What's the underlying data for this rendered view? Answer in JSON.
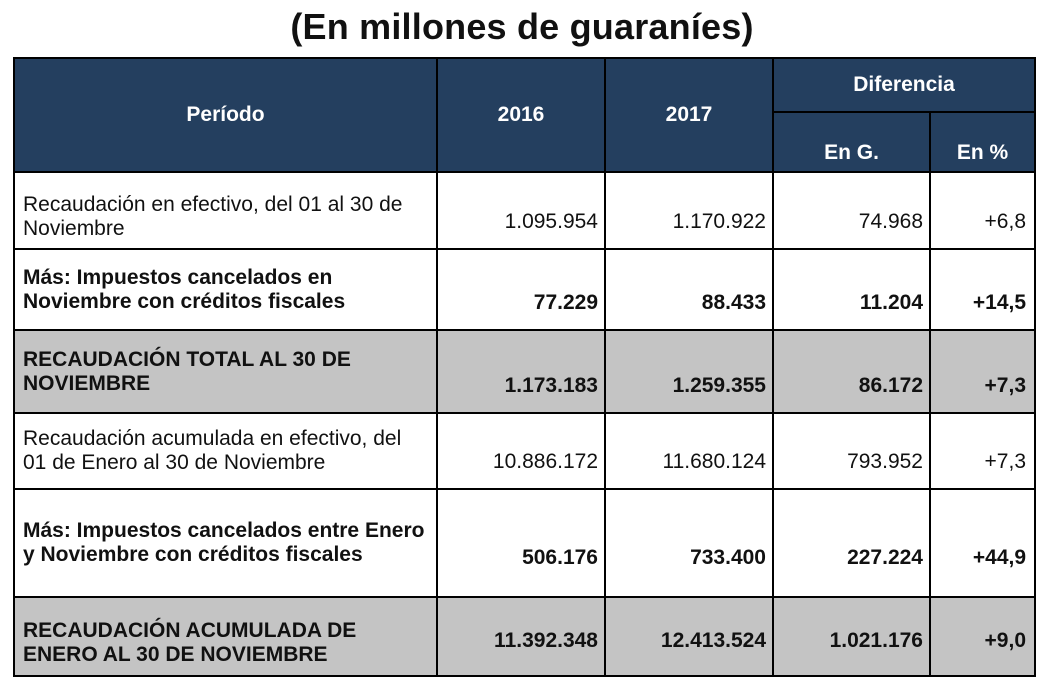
{
  "title": "(En millones de guaraníes)",
  "header": {
    "periodo": "Período",
    "y2016": "2016",
    "y2017": "2017",
    "diferencia": "Diferencia",
    "en_g": "En G.",
    "en_pct": "En %"
  },
  "rows": [
    {
      "label": "Recaudación en efectivo, del 01 al 30 de Noviembre",
      "v2016": "1.095.954",
      "v2017": "1.170.922",
      "dif_g": "74.968",
      "dif_pct": "+6,8"
    },
    {
      "label": "Más: Impuestos cancelados en Noviembre con créditos fiscales",
      "v2016": "77.229",
      "v2017": "88.433",
      "dif_g": "11.204",
      "dif_pct": "+14,5"
    },
    {
      "label": "RECAUDACIÓN TOTAL AL 30 DE NOVIEMBRE",
      "v2016": "1.173.183",
      "v2017": "1.259.355",
      "dif_g": "86.172",
      "dif_pct": "+7,3"
    },
    {
      "label": "Recaudación acumulada en efectivo, del 01 de Enero al 30 de Noviembre",
      "v2016": "10.886.172",
      "v2017": "11.680.124",
      "dif_g": "793.952",
      "dif_pct": "+7,3"
    },
    {
      "label": "Más: Impuestos cancelados entre Enero y Noviembre con créditos fiscales",
      "v2016": "506.176",
      "v2017": "733.400",
      "dif_g": "227.224",
      "dif_pct": "+44,9"
    },
    {
      "label": "RECAUDACIÓN ACUMULADA DE ENERO AL 30 DE NOVIEMBRE",
      "v2016": "11.392.348",
      "v2017": "12.413.524",
      "dif_g": "1.021.176",
      "dif_pct": "+9,0"
    }
  ],
  "colors": {
    "header_bg": "#243f5f",
    "header_text": "#ffffff",
    "total_row_bg": "#c4c4c4",
    "border": "#000000"
  }
}
